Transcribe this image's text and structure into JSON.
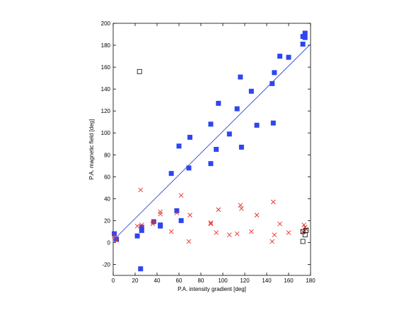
{
  "chart_data": {
    "type": "scatter",
    "title": "",
    "xlabel": "P.A. intensity gradient [deg]",
    "ylabel": "P.A. magnetic field [deg]",
    "xlim": [
      0,
      180
    ],
    "ylim": [
      -30,
      200
    ],
    "xticks": [
      "0",
      "20",
      "40",
      "60",
      "80",
      "100",
      "120",
      "140",
      "160",
      "180"
    ],
    "yticks": [
      "-20",
      "0",
      "20",
      "40",
      "60",
      "80",
      "100",
      "120",
      "140",
      "160",
      "180",
      "200"
    ],
    "grid": false,
    "legend": "none",
    "series": [
      {
        "marker": "filled-square",
        "color": "#2e45f0",
        "points": [
          [
            1,
            8
          ],
          [
            3,
            3
          ],
          [
            22,
            6
          ],
          [
            25,
            -24
          ],
          [
            26,
            14
          ],
          [
            26,
            11
          ],
          [
            37,
            19
          ],
          [
            43,
            16
          ],
          [
            43,
            15
          ],
          [
            53,
            63
          ],
          [
            58,
            29
          ],
          [
            60,
            88
          ],
          [
            62,
            20
          ],
          [
            69,
            68
          ],
          [
            70,
            96
          ],
          [
            89,
            108
          ],
          [
            89,
            72
          ],
          [
            94,
            85
          ],
          [
            96,
            127
          ],
          [
            106,
            99
          ],
          [
            113,
            122
          ],
          [
            116,
            151
          ],
          [
            117,
            87
          ],
          [
            126,
            138
          ],
          [
            131,
            107
          ],
          [
            145,
            145
          ],
          [
            146,
            109
          ],
          [
            147,
            155
          ],
          [
            152,
            170
          ],
          [
            160,
            169
          ],
          [
            173,
            181
          ],
          [
            173,
            188
          ],
          [
            175,
            187
          ],
          [
            175,
            191
          ]
        ]
      },
      {
        "marker": "cross",
        "color": "#e8302a",
        "points": [
          [
            1,
            6
          ],
          [
            3,
            2
          ],
          [
            22,
            15
          ],
          [
            25,
            48
          ],
          [
            26,
            16
          ],
          [
            36,
            17
          ],
          [
            37,
            19
          ],
          [
            43,
            26
          ],
          [
            43,
            28
          ],
          [
            53,
            10
          ],
          [
            58,
            27
          ],
          [
            62,
            43
          ],
          [
            69,
            1
          ],
          [
            70,
            25
          ],
          [
            89,
            18
          ],
          [
            89,
            17
          ],
          [
            94,
            9
          ],
          [
            96,
            30
          ],
          [
            106,
            7
          ],
          [
            113,
            8
          ],
          [
            116,
            34
          ],
          [
            117,
            31
          ],
          [
            126,
            10
          ],
          [
            131,
            25
          ],
          [
            145,
            1
          ],
          [
            146,
            37
          ],
          [
            147,
            7
          ],
          [
            152,
            17
          ],
          [
            160,
            9
          ],
          [
            173,
            10
          ],
          [
            174,
            16
          ],
          [
            175,
            14
          ],
          [
            176,
            12
          ]
        ]
      },
      {
        "marker": "open-square",
        "color": "#000000",
        "points": [
          [
            24,
            156
          ],
          [
            173,
            1
          ],
          [
            173,
            10
          ],
          [
            175,
            7
          ],
          [
            176,
            11
          ]
        ]
      }
    ],
    "fit_line": {
      "color": "#3b5bd6",
      "x": [
        0,
        180
      ],
      "y": [
        2,
        181
      ]
    }
  }
}
